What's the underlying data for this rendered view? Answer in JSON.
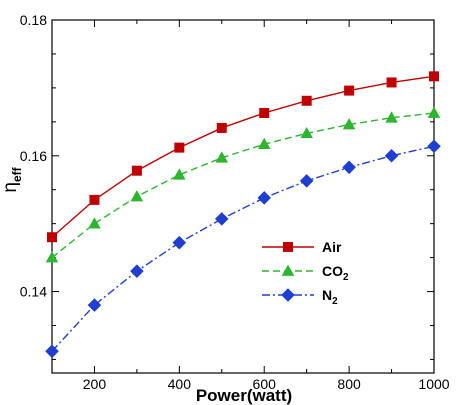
{
  "chart_data": {
    "type": "line",
    "xlabel": "Power(watt)",
    "ylabel": {
      "main": "η",
      "sub": "eff"
    },
    "xlim": [
      100,
      1000
    ],
    "ylim": [
      0.128,
      0.18
    ],
    "x_ticks": [
      200,
      400,
      600,
      800,
      1000
    ],
    "x_tick_labels": [
      "200",
      "400",
      "600",
      "800",
      "1000"
    ],
    "y_ticks": [
      0.14,
      0.16,
      0.18
    ],
    "y_tick_labels": [
      "0.14",
      "0.16",
      "0.18"
    ],
    "grid": false,
    "legend_position": "lower-right",
    "x": [
      100,
      200,
      300,
      400,
      500,
      600,
      700,
      800,
      900,
      1000
    ],
    "series": [
      {
        "name": "Air",
        "label_main": "Air",
        "label_sub": "",
        "color": "#c00000",
        "line_style": "solid",
        "marker": "square",
        "values": [
          0.148,
          0.1535,
          0.1578,
          0.1612,
          0.1641,
          0.1663,
          0.1681,
          0.1696,
          0.1708,
          0.1717
        ]
      },
      {
        "name": "CO2",
        "label_main": "CO",
        "label_sub": "2",
        "color": "#2db52d",
        "line_style": "dashed",
        "marker": "triangle",
        "values": [
          0.145,
          0.15,
          0.154,
          0.1572,
          0.1597,
          0.1617,
          0.1633,
          0.1646,
          0.1656,
          0.1663
        ]
      },
      {
        "name": "N2",
        "label_main": "N",
        "label_sub": "2",
        "color": "#1f3fd0",
        "line_style": "dashdot",
        "marker": "diamond",
        "values": [
          0.1312,
          0.138,
          0.143,
          0.1472,
          0.1507,
          0.1538,
          0.1563,
          0.1583,
          0.16,
          0.1614
        ]
      }
    ]
  }
}
